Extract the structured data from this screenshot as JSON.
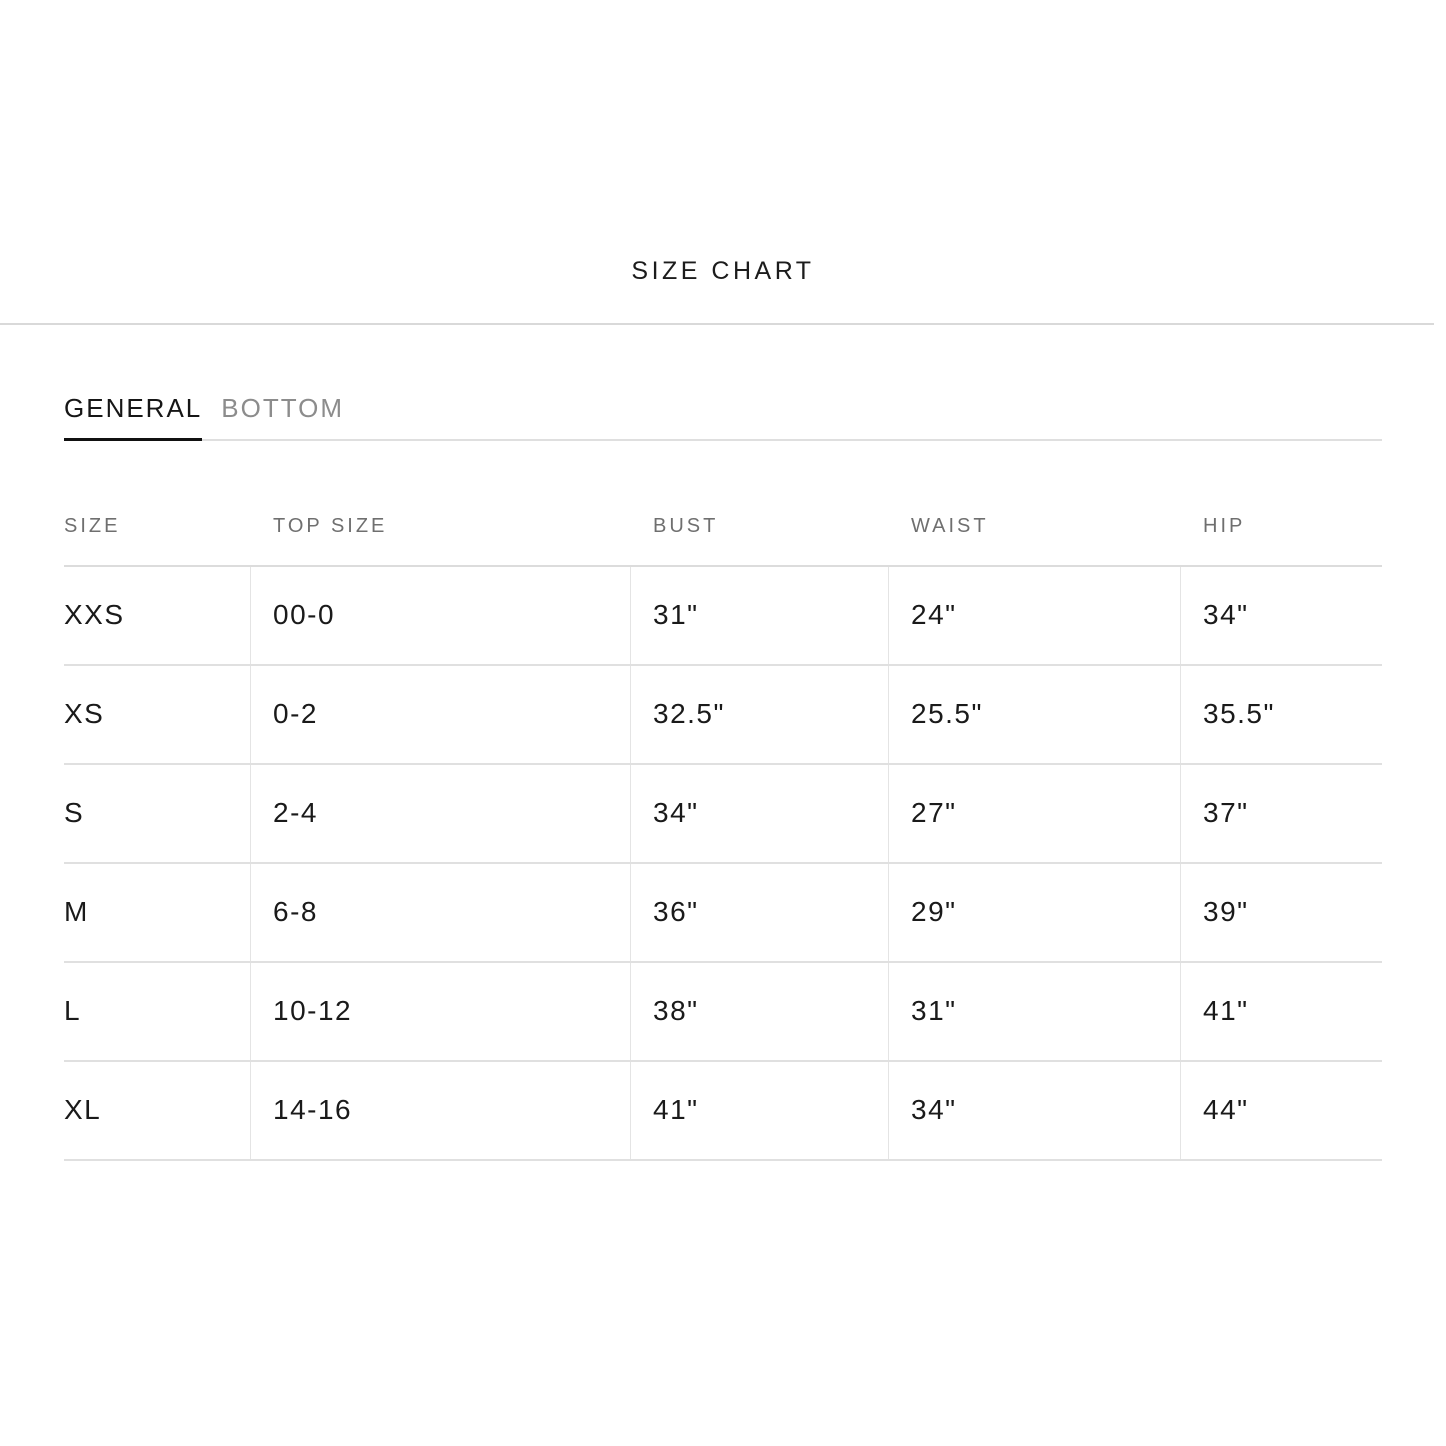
{
  "title": "SIZE CHART",
  "tabs": {
    "general": {
      "label": "GENERAL",
      "active": true
    },
    "bottom": {
      "label": "BOTTOM",
      "active": false
    }
  },
  "table": {
    "headers": [
      "SIZE",
      "TOP SIZE",
      "BUST",
      "WAIST",
      "HIP"
    ],
    "rows": [
      [
        "XXS",
        "00-0",
        "31\"",
        "24\"",
        "34\""
      ],
      [
        "XS",
        "0-2",
        "32.5\"",
        "25.5\"",
        "35.5\""
      ],
      [
        "S",
        "2-4",
        "34\"",
        "27\"",
        "37\""
      ],
      [
        "M",
        "6-8",
        "36\"",
        "29\"",
        "39\""
      ],
      [
        "L",
        "10-12",
        "38\"",
        "31\"",
        "41\""
      ],
      [
        "XL",
        "14-16",
        "41\"",
        "34\"",
        "44\""
      ]
    ]
  },
  "colors": {
    "text": "#1a1a1a",
    "header_muted": "#6f6f6f",
    "tab_inactive": "#8c8c8c",
    "divider": "#dcdcdc",
    "active_tab_underline": "#111111"
  }
}
